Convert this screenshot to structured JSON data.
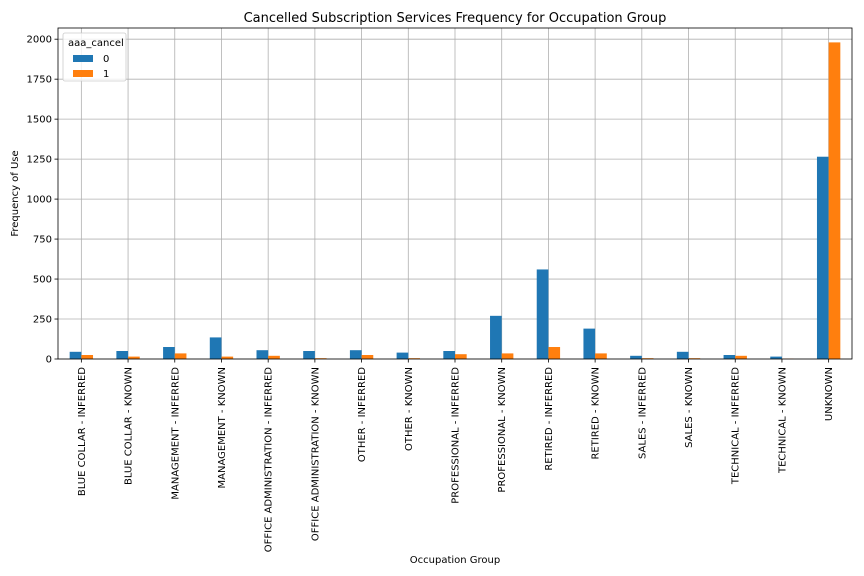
{
  "chart_data": {
    "type": "bar",
    "title": "Cancelled Subscription Services Frequency for Occupation Group",
    "xlabel": "Occupation Group",
    "ylabel": "Frequency of Use",
    "ylim": [
      0,
      2070
    ],
    "yticks": [
      0,
      250,
      500,
      750,
      1000,
      1250,
      1500,
      1750,
      2000
    ],
    "grid": true,
    "legend_title": "aaa_cancel",
    "legend_position": "top-left",
    "categories": [
      "BLUE COLLAR - INFERRED",
      "BLUE COLLAR - KNOWN",
      "MANAGEMENT - INFERRED",
      "MANAGEMENT - KNOWN",
      "OFFICE ADMINISTRATION - INFERRED",
      "OFFICE ADMINISTRATION - KNOWN",
      "OTHER - INFERRED",
      "OTHER - KNOWN",
      "PROFESSIONAL - INFERRED",
      "PROFESSIONAL - KNOWN",
      "RETIRED - INFERRED",
      "RETIRED - KNOWN",
      "SALES - INFERRED",
      "SALES - KNOWN",
      "TECHNICAL - INFERRED",
      "TECHNICAL - KNOWN",
      "UNKNOWN"
    ],
    "series": [
      {
        "name": "0",
        "color": "#1f77b4",
        "values": [
          45,
          50,
          75,
          135,
          55,
          50,
          55,
          40,
          50,
          270,
          560,
          190,
          20,
          45,
          25,
          15,
          1265
        ]
      },
      {
        "name": "1",
        "color": "#ff7f0e",
        "values": [
          25,
          15,
          35,
          15,
          20,
          5,
          25,
          5,
          30,
          35,
          75,
          35,
          5,
          5,
          20,
          2,
          1980
        ]
      }
    ]
  }
}
